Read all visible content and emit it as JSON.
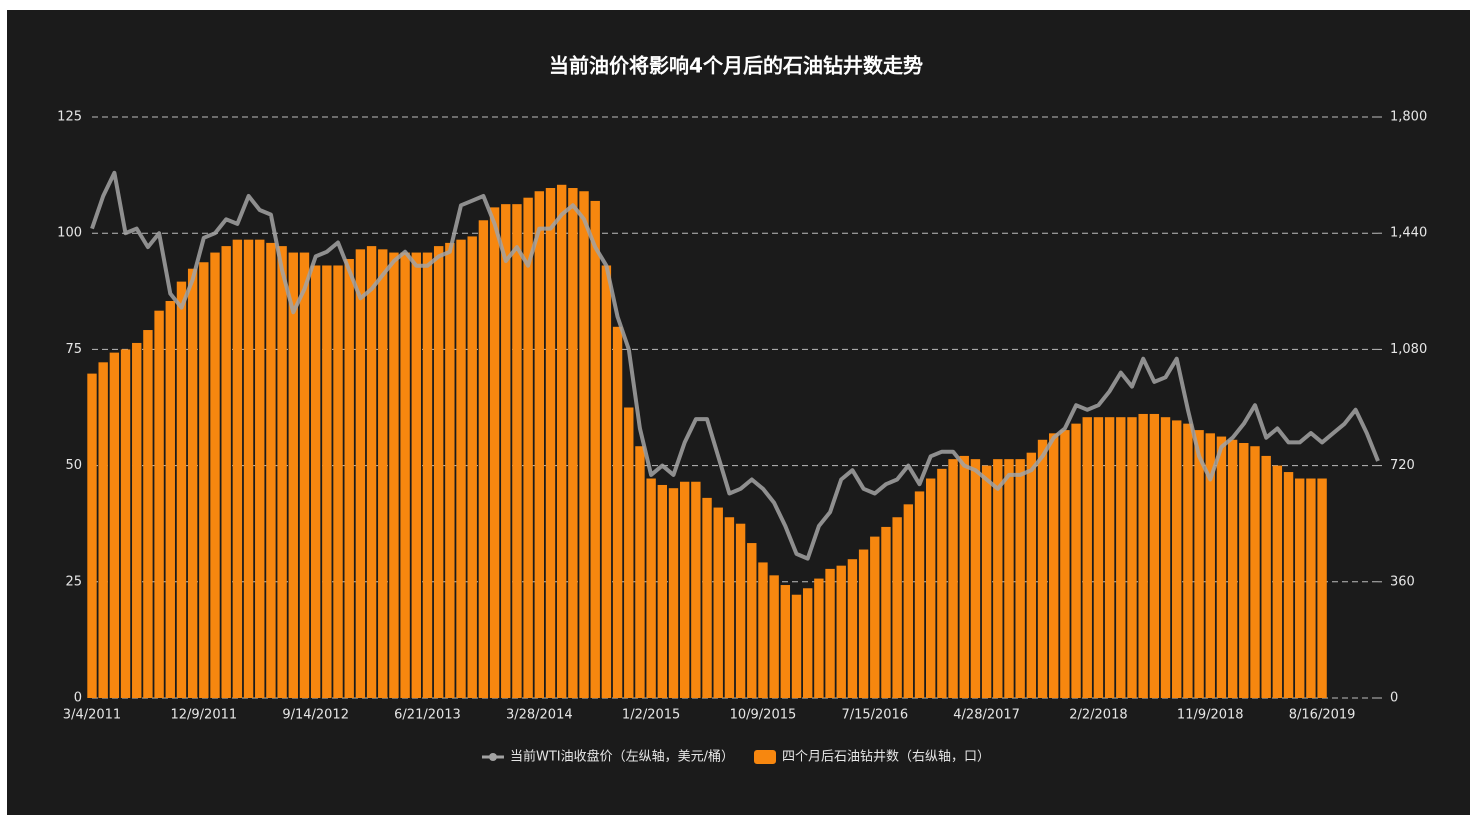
{
  "chart_data": {
    "type": "combo",
    "title": "当前油价将影响4个月后的石油钻井数走势",
    "categories": [
      "3/4/2011",
      null,
      null,
      null,
      null,
      null,
      null,
      null,
      null,
      null,
      "12/9/2011",
      null,
      null,
      null,
      null,
      null,
      null,
      null,
      null,
      null,
      "9/14/2012",
      null,
      null,
      null,
      null,
      null,
      null,
      null,
      null,
      null,
      "6/21/2013",
      null,
      null,
      null,
      null,
      null,
      null,
      null,
      null,
      null,
      "3/28/2014",
      null,
      null,
      null,
      null,
      null,
      null,
      null,
      null,
      null,
      "1/2/2015",
      null,
      null,
      null,
      null,
      null,
      null,
      null,
      null,
      null,
      "10/9/2015",
      null,
      null,
      null,
      null,
      null,
      null,
      null,
      null,
      null,
      "7/15/2016",
      null,
      null,
      null,
      null,
      null,
      null,
      null,
      null,
      null,
      "4/28/2017",
      null,
      null,
      null,
      null,
      null,
      null,
      null,
      null,
      null,
      "2/2/2018",
      null,
      null,
      null,
      null,
      null,
      null,
      null,
      null,
      null,
      "11/9/2018",
      null,
      null,
      null,
      null,
      null,
      null,
      null,
      null,
      null,
      "8/16/2019",
      null,
      null,
      null,
      null,
      null
    ],
    "series": [
      {
        "name": "当前WTI油收盘价（左纵轴，美元/桶）",
        "type": "line",
        "color": "#a3a3a3",
        "values": [
          101,
          108,
          113,
          100,
          101,
          97,
          100,
          87,
          84,
          90,
          99,
          100,
          103,
          102,
          108,
          105,
          104,
          92,
          83,
          88,
          95,
          96,
          98,
          92,
          86,
          88,
          91,
          94,
          96,
          93,
          93,
          95,
          96,
          106,
          107,
          108,
          102,
          94,
          97,
          93,
          101,
          101,
          104,
          106,
          103,
          97,
          93,
          82,
          75,
          58,
          48,
          50,
          48,
          55,
          60,
          60,
          52,
          44,
          45,
          47,
          45,
          42,
          37,
          31,
          30,
          37,
          40,
          47,
          49,
          45,
          44,
          46,
          47,
          50,
          46,
          52,
          53,
          53,
          50,
          49,
          47,
          45,
          48,
          48,
          49,
          52,
          56,
          58,
          63,
          62,
          63,
          66,
          70,
          67,
          73,
          68,
          69,
          73,
          62,
          52,
          47,
          54,
          56,
          59,
          63,
          56,
          58,
          55,
          55,
          57,
          55,
          57,
          59,
          62,
          57,
          51
        ]
      },
      {
        "name": "四个月后石油钻井数（右纵轴，口）",
        "type": "bar",
        "axis": "y2",
        "color": "#f7870f",
        "values": [
          1005,
          1040,
          1070,
          1080,
          1100,
          1140,
          1200,
          1230,
          1290,
          1330,
          1350,
          1380,
          1400,
          1420,
          1420,
          1420,
          1410,
          1400,
          1380,
          1380,
          1340,
          1340,
          1340,
          1360,
          1390,
          1400,
          1390,
          1380,
          1380,
          1380,
          1380,
          1400,
          1410,
          1420,
          1430,
          1480,
          1520,
          1530,
          1530,
          1550,
          1570,
          1580,
          1590,
          1580,
          1570,
          1540,
          1340,
          1150,
          900,
          780,
          680,
          660,
          650,
          670,
          670,
          620,
          590,
          560,
          540,
          480,
          420,
          380,
          350,
          320,
          340,
          370,
          400,
          410,
          430,
          460,
          500,
          530,
          560,
          600,
          640,
          680,
          710,
          740,
          750,
          740,
          720,
          740,
          740,
          740,
          760,
          800,
          820,
          830,
          850,
          870,
          870,
          870,
          870,
          870,
          880,
          880,
          870,
          860,
          850,
          830,
          820,
          810,
          800,
          790,
          780,
          750,
          720,
          700,
          680,
          680,
          680,
          null,
          null,
          null,
          null,
          null
        ]
      }
    ],
    "ylim": [
      0,
      125
    ],
    "yticks": [
      0,
      25,
      50,
      75,
      100,
      125
    ],
    "y2lim": [
      0,
      1800
    ],
    "y2ticks": [
      0,
      360,
      720,
      {
        "value": 1080,
        "label": "1,080"
      },
      {
        "value": 1440,
        "label": "1,440"
      },
      {
        "value": 1800,
        "label": "1,800"
      }
    ],
    "grid": true,
    "legend": "bottom"
  }
}
